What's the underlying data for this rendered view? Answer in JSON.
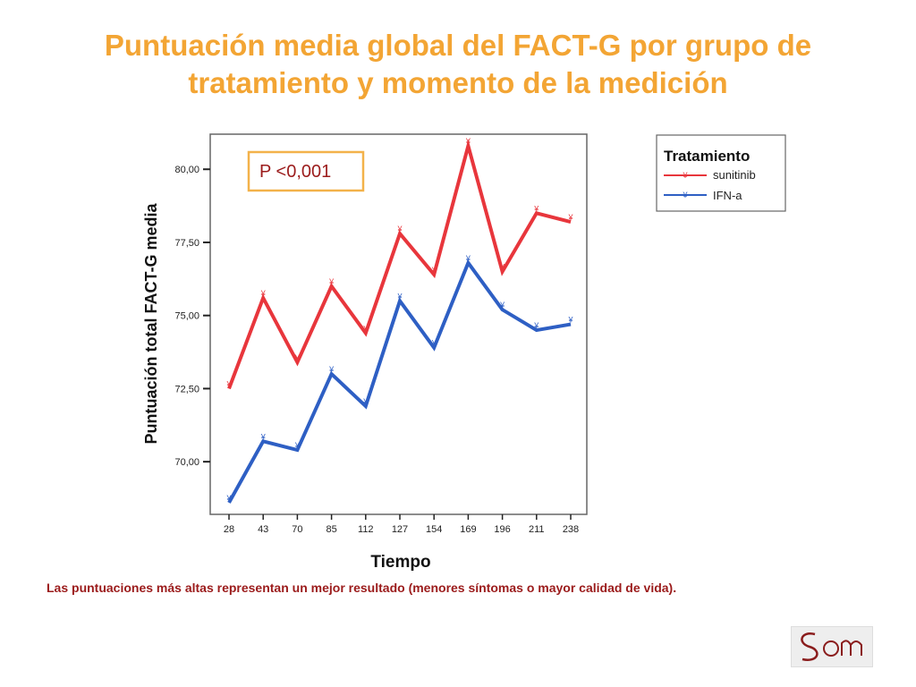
{
  "title": {
    "line1": "Puntuación media global del FACT-G por grupo de",
    "line2": "tratamiento y momento de la medición"
  },
  "colors": {
    "title": "#f3a534",
    "note": "#9b1b1b",
    "sunitinib": "#e8363c",
    "ifn": "#2e5fc4",
    "pbox_border": "#f3b24a"
  },
  "chart_data": {
    "type": "line",
    "xlabel": "Tiempo",
    "ylabel": "Puntuación total FACT-G media",
    "categories": [
      "28",
      "43",
      "70",
      "85",
      "112",
      "127",
      "154",
      "169",
      "196",
      "211",
      "238"
    ],
    "y_ticks": [
      "70,00",
      "72,50",
      "75,00",
      "77,50",
      "80,00"
    ],
    "ylim": [
      68.2,
      81.2
    ],
    "grid": false,
    "legend_position": "top-right, outside plot",
    "legend_title": "Tratamiento",
    "series": [
      {
        "name": "sunitinib",
        "values": [
          72.5,
          75.6,
          73.4,
          76.0,
          74.4,
          77.8,
          76.4,
          80.8,
          76.5,
          78.5,
          78.2
        ]
      },
      {
        "name": "IFN-a",
        "values": [
          68.6,
          70.7,
          70.4,
          73.0,
          71.9,
          75.5,
          73.9,
          76.8,
          75.2,
          74.5,
          74.7
        ]
      }
    ],
    "annotation": "P <0,001"
  },
  "note": "Las puntuaciones más altas representan un mejor resultado (menores síntomas o mayor calidad de vida).",
  "logo": {
    "text": "SEOM"
  }
}
